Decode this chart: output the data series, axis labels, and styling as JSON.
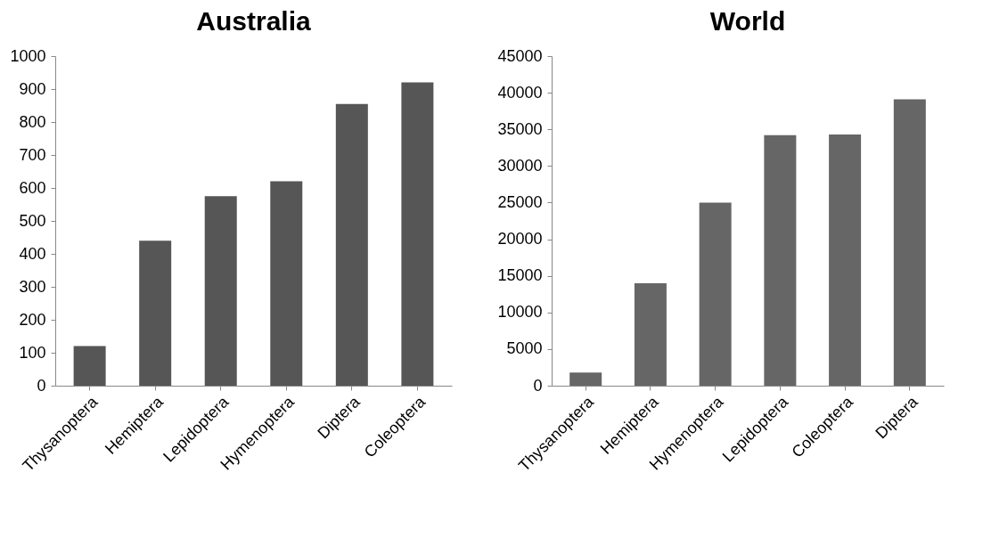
{
  "chart_data": [
    {
      "type": "bar",
      "title": "Australia",
      "categories": [
        "Thysanoptera",
        "Hemiptera",
        "Lepidoptera",
        "Hymenoptera",
        "Diptera",
        "Coleoptera"
      ],
      "values": [
        120,
        440,
        575,
        620,
        855,
        920
      ],
      "color": "#565656",
      "ylim": [
        0,
        1000
      ],
      "yticks": [
        0,
        100,
        200,
        300,
        400,
        500,
        600,
        700,
        800,
        900,
        1000
      ],
      "grid": false
    },
    {
      "type": "bar",
      "title": "World",
      "categories": [
        "Thysanoptera",
        "Hemiptera",
        "Hymenoptera",
        "Lepidoptera",
        "Coleoptera",
        "Diptera"
      ],
      "values": [
        1800,
        14000,
        25000,
        34200,
        34300,
        39100
      ],
      "color": "#666666",
      "ylim": [
        0,
        45000
      ],
      "yticks": [
        0,
        5000,
        10000,
        15000,
        20000,
        25000,
        30000,
        35000,
        40000,
        45000
      ],
      "grid": false
    }
  ]
}
